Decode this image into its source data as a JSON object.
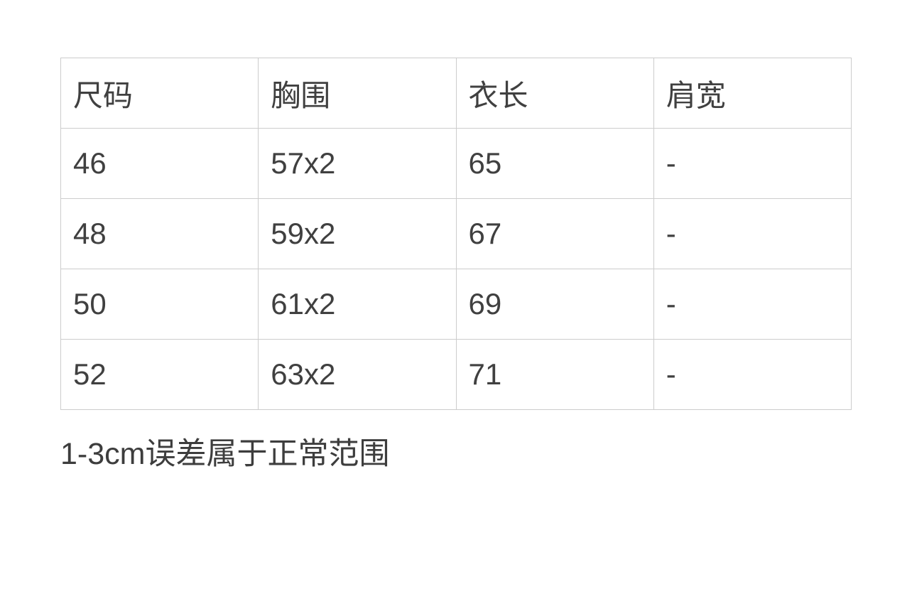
{
  "size_chart": {
    "columns": [
      "尺码",
      "胸围",
      "衣长",
      "肩宽"
    ],
    "rows": [
      [
        "46",
        "57x2",
        "65",
        "-"
      ],
      [
        "48",
        "59x2",
        "67",
        "-"
      ],
      [
        "50",
        "61x2",
        "69",
        "-"
      ],
      [
        "52",
        "63x2",
        "71",
        "-"
      ]
    ],
    "note": "1-3cm误差属于正常范围"
  },
  "colors": {
    "background": "#ffffff",
    "table_border": "#cccccc",
    "cell_text": "#404040",
    "note_text": "#3d3d3d"
  }
}
